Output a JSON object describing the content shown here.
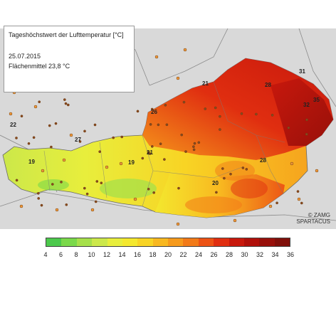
{
  "info": {
    "title": "Tageshöchstwert der Lufttemperatur [°C]",
    "date": "25.07.2015",
    "mean": "Flächenmittel 23,8 °C"
  },
  "credit": {
    "line1": "© ZAMG",
    "line2": "SPARTACUS"
  },
  "legend": {
    "ticks": [
      "4",
      "6",
      "8",
      "10",
      "12",
      "14",
      "16",
      "18",
      "20",
      "22",
      "24",
      "26",
      "28",
      "30",
      "32",
      "34",
      "36"
    ],
    "colors": [
      "#4cc94c",
      "#7ad94a",
      "#a6e04a",
      "#cce84a",
      "#e8ee3c",
      "#f4e82e",
      "#f8d424",
      "#f8b820",
      "#f69a1c",
      "#f27a18",
      "#ec5214",
      "#e02e10",
      "#c8180c",
      "#b0100a",
      "#98100a",
      "#80100a"
    ]
  },
  "labels": [
    {
      "text": "22"
    },
    {
      "text": "27"
    },
    {
      "text": "19"
    },
    {
      "text": "19"
    },
    {
      "text": "21"
    },
    {
      "text": "26"
    },
    {
      "text": "26"
    },
    {
      "text": "21"
    },
    {
      "text": "28"
    },
    {
      "text": "35"
    },
    {
      "text": "32"
    },
    {
      "text": "31"
    },
    {
      "text": "28"
    },
    {
      "text": "20"
    }
  ],
  "colors": {
    "background": "#d9d9d9",
    "border": "#8a8a8a"
  }
}
